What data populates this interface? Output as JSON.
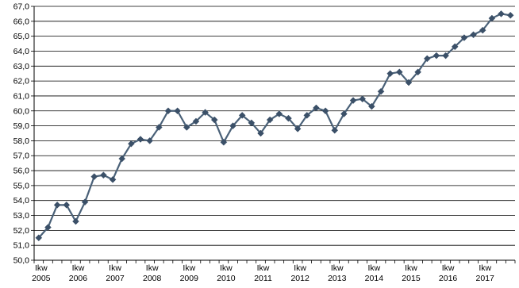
{
  "chart_data": {
    "type": "line",
    "title": "",
    "xlabel": "",
    "ylabel": "",
    "ylim": [
      50,
      67
    ],
    "ytick_step": 1,
    "grid": true,
    "legend": "none",
    "colors": {
      "line": "#4a6178",
      "marker": "#3b5068",
      "grid": "#000000",
      "axis": "#000000"
    },
    "x_tick_labels": [
      [
        "Ikw",
        "2005"
      ],
      [
        "Ikw",
        "2006"
      ],
      [
        "Ikw",
        "2007"
      ],
      [
        "Ikw",
        "2008"
      ],
      [
        "Ikw",
        "2009"
      ],
      [
        "Ikw",
        "2010"
      ],
      [
        "Ikw",
        "2011"
      ],
      [
        "Ikw",
        "2012"
      ],
      [
        "Ikw",
        "2013"
      ],
      [
        "Ikw",
        "2014"
      ],
      [
        "Ikw",
        "2015"
      ],
      [
        "Ikw",
        "2016"
      ],
      [
        "Ikw",
        "2017"
      ]
    ],
    "series": [
      {
        "values": [
          51.5,
          52.2,
          53.7,
          53.7,
          52.6,
          53.9,
          55.6,
          55.7,
          55.4,
          56.8,
          57.8,
          58.1,
          58.0,
          58.9,
          60.0,
          60.0,
          58.9,
          59.3,
          59.9,
          59.4,
          57.9,
          59.0,
          59.7,
          59.2,
          58.5,
          59.4,
          59.8,
          59.5,
          58.8,
          59.7,
          60.2,
          60.0,
          58.7,
          59.8,
          60.7,
          60.8,
          60.3,
          61.3,
          62.5,
          62.6,
          61.9,
          62.6,
          63.5,
          63.7,
          63.7,
          64.3,
          64.9,
          65.1,
          65.4,
          66.2,
          66.5,
          66.4
        ]
      }
    ]
  }
}
